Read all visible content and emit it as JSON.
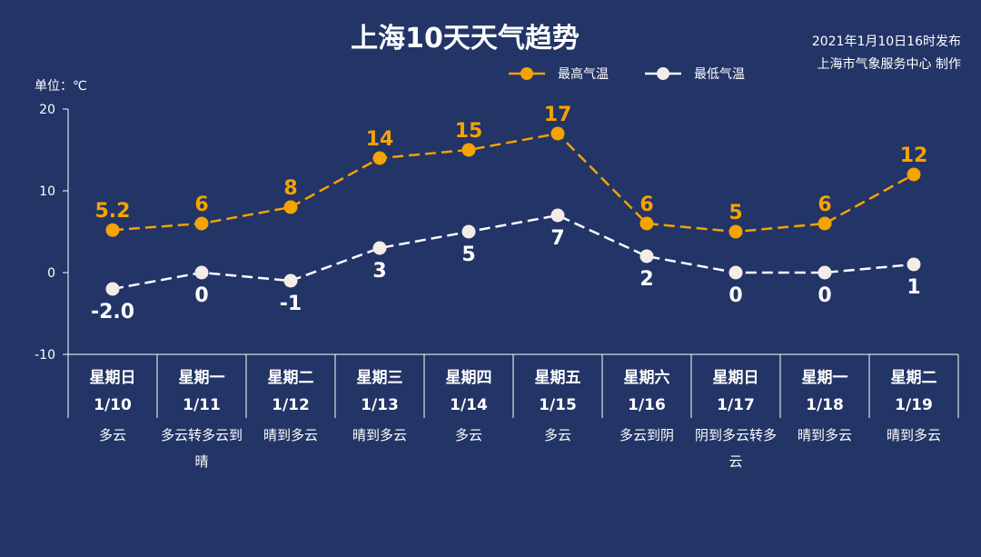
{
  "header": {
    "title": "上海10天天气趋势",
    "publish_time": "2021年1月10日16时发布",
    "publisher": "上海市气象服务中心 制作"
  },
  "legend": {
    "high_label": "最高气温",
    "low_label": "最低气温",
    "placement": "top-right"
  },
  "unit_label": "单位：℃",
  "colors": {
    "background": "#233466",
    "high": "#f5a300",
    "low": "#ffffff",
    "axis": "#ffffff"
  },
  "chart_data": {
    "type": "line",
    "title": "上海10天天气趋势",
    "ylabel": "单位：℃",
    "ylim": [
      -10,
      20
    ],
    "yticks": [
      20,
      10,
      0,
      -10
    ],
    "grid": false,
    "categories": [
      "1/10",
      "1/11",
      "1/12",
      "1/13",
      "1/14",
      "1/15",
      "1/16",
      "1/17",
      "1/18",
      "1/19"
    ],
    "weekdays": [
      "星期日",
      "星期一",
      "星期二",
      "星期三",
      "星期四",
      "星期五",
      "星期六",
      "星期日",
      "星期一",
      "星期二"
    ],
    "conditions": [
      "多云",
      "多云转多云到晴",
      "晴到多云",
      "晴到多云",
      "多云",
      "多云",
      "多云到阴",
      "阴到多云转多云",
      "晴到多云",
      "晴到多云"
    ],
    "series": [
      {
        "name": "最高气温",
        "values": [
          5.2,
          6,
          8,
          14,
          15,
          17,
          6,
          5,
          6,
          12
        ],
        "labels": [
          "5.2",
          "6",
          "8",
          "14",
          "15",
          "17",
          "6",
          "5",
          "6",
          "12"
        ]
      },
      {
        "name": "最低气温",
        "values": [
          -2.0,
          0,
          -1,
          3,
          5,
          7,
          2,
          0,
          0,
          1
        ],
        "labels": [
          "-2.0",
          "0",
          "-1",
          "3",
          "5",
          "7",
          "2",
          "0",
          "0",
          "1"
        ]
      }
    ]
  }
}
